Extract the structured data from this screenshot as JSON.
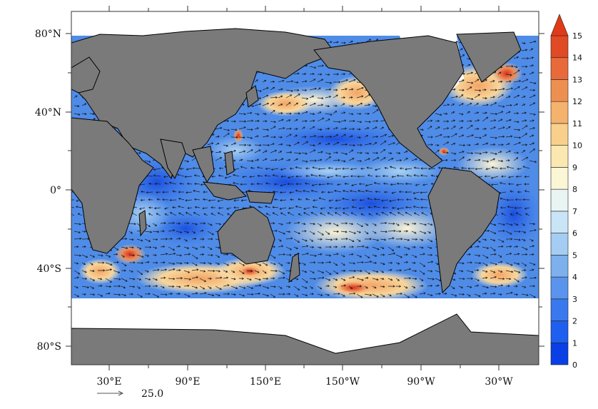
{
  "map": {
    "lat_ticks": [
      "80°N",
      "40°N",
      "0°",
      "40°S",
      "80°S"
    ],
    "lon_ticks": [
      "30°E",
      "90°E",
      "150°E",
      "150°W",
      "90°W",
      "30°W"
    ],
    "reference_vector_value": "25.0",
    "colors": {
      "land": "#7a7a7a",
      "ice": "#ffffff",
      "frame": "#333333"
    }
  },
  "colorbar": {
    "ticks": [
      "0",
      "1",
      "2",
      "3",
      "4",
      "5",
      "6",
      "7",
      "8",
      "9",
      "10",
      "11",
      "12",
      "13",
      "14",
      "15"
    ],
    "colors": [
      "#0a3fe6",
      "#1f5ff0",
      "#3a78ee",
      "#5a94ec",
      "#7db0ec",
      "#a5ccf2",
      "#c9e4f6",
      "#e8f5f3",
      "#faf6d6",
      "#fbe7b0",
      "#f8d08c",
      "#f4b26c",
      "#ee8f52",
      "#e86a3a",
      "#e04a24"
    ],
    "overflow_color": "#e03a18"
  }
}
